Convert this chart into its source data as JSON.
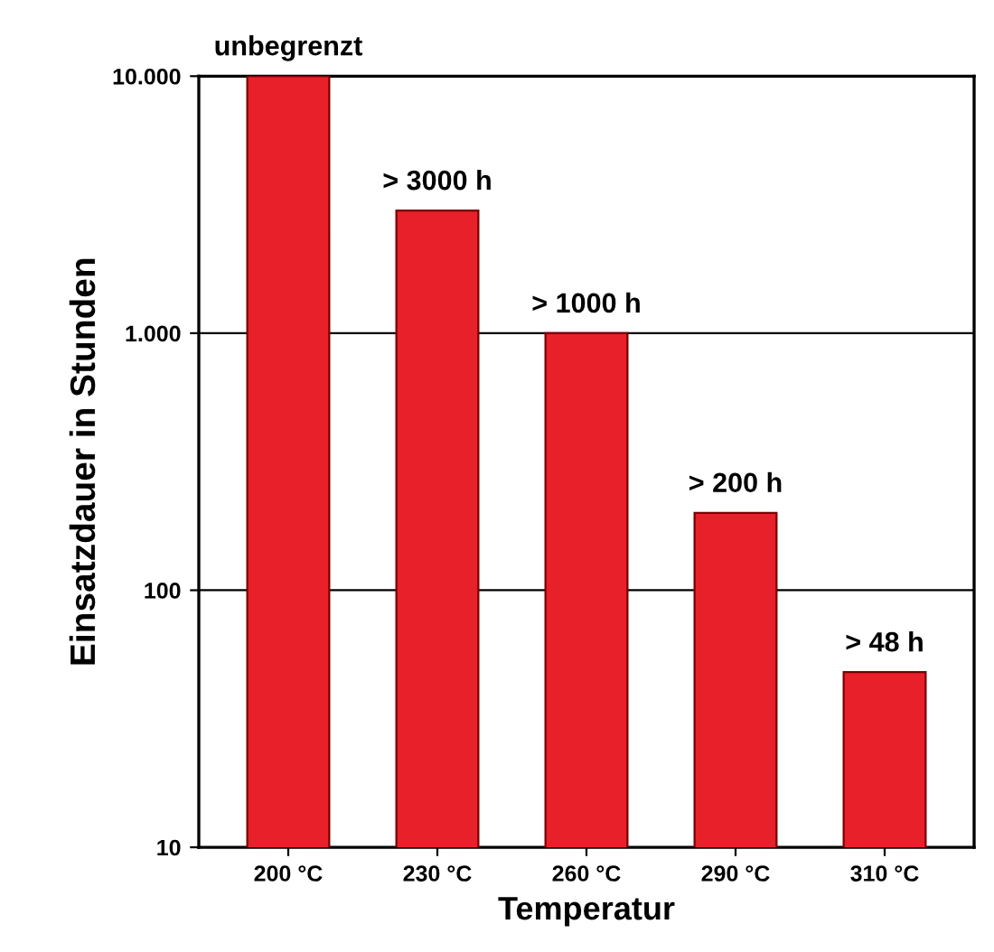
{
  "chart_data": {
    "type": "bar",
    "xlabel": "Temperatur",
    "ylabel": "Einsatzdauer in Stunden",
    "categories": [
      "200 °C",
      "230 °C",
      "260 °C",
      "290 °C",
      "310 °C"
    ],
    "values": [
      10000,
      3000,
      1000,
      200,
      48
    ],
    "value_labels": [
      "unbegrenzt",
      "> 3000 h",
      "> 1000 h",
      "> 200 h",
      "> 48 h"
    ],
    "color": "#e8202a",
    "log": "y",
    "ylim": [
      10,
      10000
    ],
    "yticks": [
      10,
      100,
      {
        "value": 1000,
        "label": "1.000"
      },
      {
        "value": 10000,
        "label": "10.000"
      }
    ],
    "grid": "y"
  }
}
